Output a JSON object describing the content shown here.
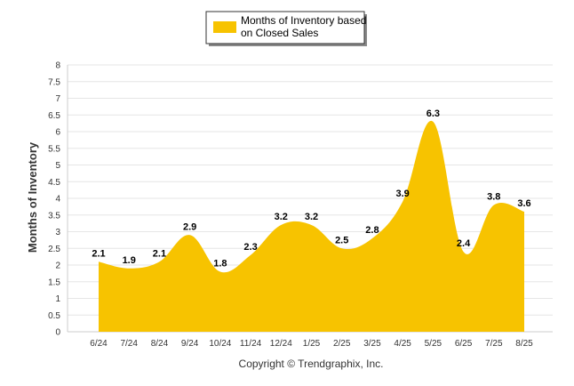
{
  "chart_data": {
    "type": "area",
    "categories": [
      "6/24",
      "7/24",
      "8/24",
      "9/24",
      "10/24",
      "11/24",
      "12/24",
      "1/25",
      "2/25",
      "3/25",
      "4/25",
      "5/25",
      "6/25",
      "7/25",
      "8/25"
    ],
    "series": [
      {
        "name": "Months of Inventory based on Closed Sales",
        "values": [
          2.1,
          1.9,
          2.1,
          2.9,
          1.8,
          2.3,
          3.2,
          3.2,
          2.5,
          2.8,
          3.9,
          6.3,
          2.4,
          3.8,
          3.6
        ],
        "color": "#F7C300"
      }
    ],
    "legend": {
      "line1": "Months of Inventory based",
      "line2": "on Closed Sales",
      "position": "top-center"
    },
    "ylabel": "Months of Inventory",
    "xlabel": "",
    "ylim": [
      0,
      8
    ],
    "yticks": [
      "0",
      "0.5",
      "1",
      "1.5",
      "2",
      "2.5",
      "3",
      "3.5",
      "4",
      "4.5",
      "5",
      "5.5",
      "6",
      "6.5",
      "7",
      "7.5",
      "8"
    ],
    "grid": true,
    "footer": "Copyright © Trendgraphix, Inc."
  }
}
